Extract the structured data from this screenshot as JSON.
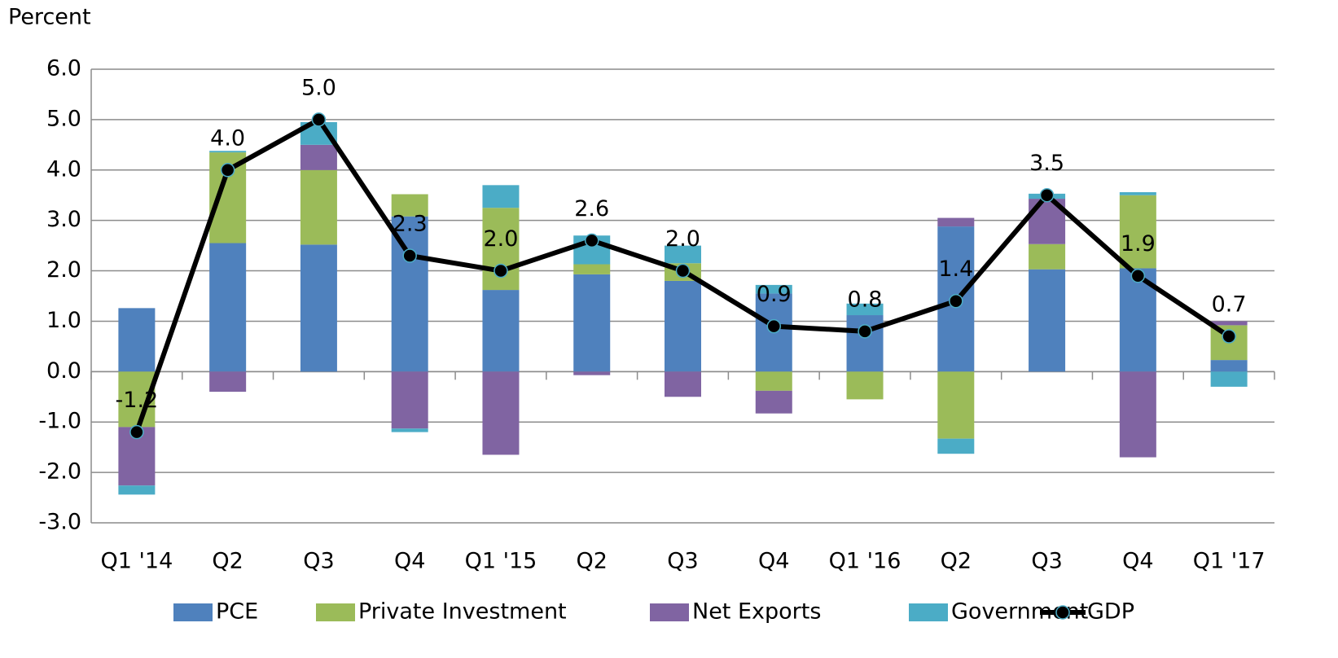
{
  "chart_data": {
    "type": "stacked_bar_line",
    "y_axis_label": "Percent",
    "categories": [
      "Q1 '14",
      "Q2",
      "Q3",
      "Q4",
      "Q1 '15",
      "Q2",
      "Q3",
      "Q4",
      "Q1 '16",
      "Q2",
      "Q3",
      "Q4",
      "Q1 '17"
    ],
    "ylim": [
      -3,
      6
    ],
    "yticks": [
      {
        "value": -3,
        "label": "-3.0"
      },
      {
        "value": -2,
        "label": "-2.0"
      },
      {
        "value": -1,
        "label": "-1.0"
      },
      {
        "value": 0,
        "label": "0.0"
      },
      {
        "value": 1,
        "label": "1.0"
      },
      {
        "value": 2,
        "label": "2.0"
      },
      {
        "value": 3,
        "label": "3.0"
      },
      {
        "value": 4,
        "label": "4.0"
      },
      {
        "value": 5,
        "label": "5.0"
      },
      {
        "value": 6,
        "label": "6.0"
      }
    ],
    "grid": true,
    "series": [
      {
        "name": "PCE",
        "color": "#4f81bd",
        "values": [
          1.26,
          2.55,
          2.52,
          3.08,
          1.62,
          1.93,
          1.8,
          1.55,
          1.12,
          2.88,
          2.03,
          2.05,
          0.23
        ]
      },
      {
        "name": "Private Investment",
        "color": "#9bbb59",
        "values": [
          -1.1,
          1.8,
          1.48,
          0.44,
          1.63,
          0.2,
          0.35,
          -0.38,
          -0.55,
          -1.33,
          0.5,
          1.45,
          0.69
        ]
      },
      {
        "name": "Net Exports",
        "color": "#8064a2",
        "values": [
          -1.16,
          -0.4,
          0.5,
          -1.13,
          -1.65,
          -0.07,
          -0.5,
          -0.45,
          0,
          0.17,
          0.9,
          -1.7,
          0.08
        ]
      },
      {
        "name": "Government",
        "color": "#4bacc6",
        "values": [
          -0.18,
          0.03,
          0.45,
          -0.07,
          0.45,
          0.57,
          0.35,
          0.17,
          0.23,
          -0.3,
          0.1,
          0.06,
          -0.3
        ]
      }
    ],
    "line": {
      "name": "GDP",
      "color": "#000000",
      "marker_edge": "#4bacc6",
      "values": [
        -1.2,
        4,
        5,
        2.3,
        2,
        2.6,
        2,
        0.9,
        0.8,
        1.4,
        3.5,
        1.9,
        0.7
      ],
      "value_labels": [
        "-1.2",
        "4.0",
        "5.0",
        "2.3",
        "2.0",
        "2.6",
        "2.0",
        "0.9",
        "0.8",
        "1.4",
        "3.5",
        "1.9",
        "0.7"
      ]
    }
  }
}
